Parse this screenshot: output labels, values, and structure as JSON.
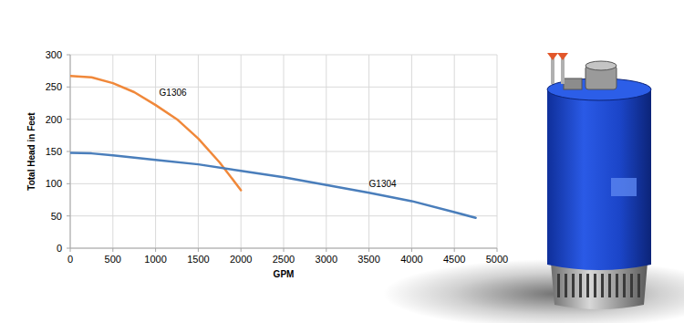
{
  "chart_data": {
    "type": "line",
    "x_label": "GPM",
    "y_label": "Total Head in Feet",
    "xlim": [
      0,
      5000
    ],
    "xticks": [
      0,
      500,
      1000,
      1500,
      2000,
      2500,
      3000,
      3500,
      4000,
      4500,
      5000
    ],
    "ylim": [
      0,
      300
    ],
    "yticks": [
      0,
      50,
      100,
      150,
      200,
      250,
      300
    ],
    "grid": true,
    "series": [
      {
        "name": "G1306",
        "color": "#f0883a",
        "x": [
          0,
          250,
          500,
          750,
          1000,
          1250,
          1500,
          1750,
          2000
        ],
        "values": [
          267,
          265,
          256,
          242,
          222,
          200,
          170,
          133,
          90
        ]
      },
      {
        "name": "G1304",
        "color": "#4a7ebb",
        "x": [
          0,
          250,
          500,
          1000,
          1500,
          2000,
          2500,
          3000,
          3500,
          4000,
          4500,
          4750
        ],
        "values": [
          148,
          147,
          144,
          137,
          130,
          120,
          110,
          98,
          86,
          73,
          56,
          47
        ]
      }
    ]
  }
}
